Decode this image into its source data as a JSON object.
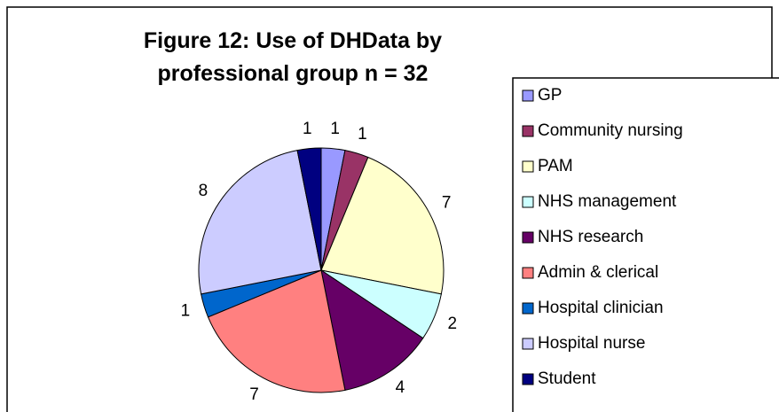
{
  "chart_data": {
    "type": "pie",
    "title": "Figure 12: Use of DHData by professional group n = 32",
    "categories": [
      "GP",
      "Community nursing",
      "PAM",
      "NHS management",
      "NHS research",
      "Admin & clerical",
      "Hospital clinician",
      "Hospital nurse",
      "Student"
    ],
    "values": [
      1,
      1,
      7,
      2,
      4,
      7,
      1,
      8,
      1
    ],
    "colors": [
      "#9999ff",
      "#993366",
      "#ffffcc",
      "#ccffff",
      "#660066",
      "#ff8080",
      "#0066cc",
      "#ccccff",
      "#000080"
    ],
    "legend": "right"
  }
}
